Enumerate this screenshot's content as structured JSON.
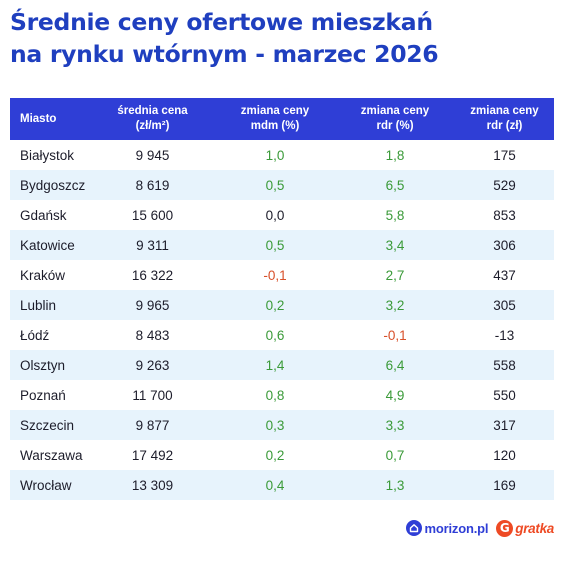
{
  "title_lines": [
    "Średnie ceny ofertowe mieszkań",
    "na rynku wtórnym - marzec 2026"
  ],
  "chart_data": {
    "type": "table",
    "columns": [
      "Miasto",
      "średnia cena (zł/m²)",
      "zmiana ceny mdm (%)",
      "zmiana ceny rdr (%)",
      "zmiana ceny rdr (zł)"
    ],
    "header_lines": [
      [
        "Miasto"
      ],
      [
        "średnia cena",
        "(zł/m²)"
      ],
      [
        "zmiana ceny",
        "mdm (%)"
      ],
      [
        "zmiana ceny",
        "rdr (%)"
      ],
      [
        "zmiana ceny",
        "rdr (zł)"
      ]
    ],
    "rows": [
      [
        "Białystok",
        "9 945",
        "1,0",
        "1,8",
        "175"
      ],
      [
        "Bydgoszcz",
        "8 619",
        "0,5",
        "6,5",
        "529"
      ],
      [
        "Gdańsk",
        "15 600",
        "0,0",
        "5,8",
        "853"
      ],
      [
        "Katowice",
        "9 311",
        "0,5",
        "3,4",
        "306"
      ],
      [
        "Kraków",
        "16 322",
        "-0,1",
        "2,7",
        "437"
      ],
      [
        "Lublin",
        "9 965",
        "0,2",
        "3,2",
        "305"
      ],
      [
        "Łódź",
        "8 483",
        "0,6",
        "-0,1",
        "-13"
      ],
      [
        "Olsztyn",
        "9 263",
        "1,4",
        "6,4",
        "558"
      ],
      [
        "Poznań",
        "11 700",
        "0,8",
        "4,9",
        "550"
      ],
      [
        "Szczecin",
        "9 877",
        "0,3",
        "3,3",
        "317"
      ],
      [
        "Warszawa",
        "17 492",
        "0,2",
        "0,7",
        "120"
      ],
      [
        "Wrocław",
        "13 309",
        "0,4",
        "1,3",
        "169"
      ]
    ]
  },
  "colors": {
    "title": "#1f3fbf",
    "header_bg": "#2f3ed6",
    "stripe": "#e7f3fc",
    "positive": "#3a9a38",
    "negative": "#d8502a",
    "morizon": "#2f3ed6",
    "gratka": "#ee4a24"
  },
  "logos": {
    "morizon_text": "morizon.pl",
    "morizon_icon": "house-icon",
    "gratka_text": "gratka",
    "gratka_icon": "g-icon",
    "gratka_letter": "G"
  }
}
